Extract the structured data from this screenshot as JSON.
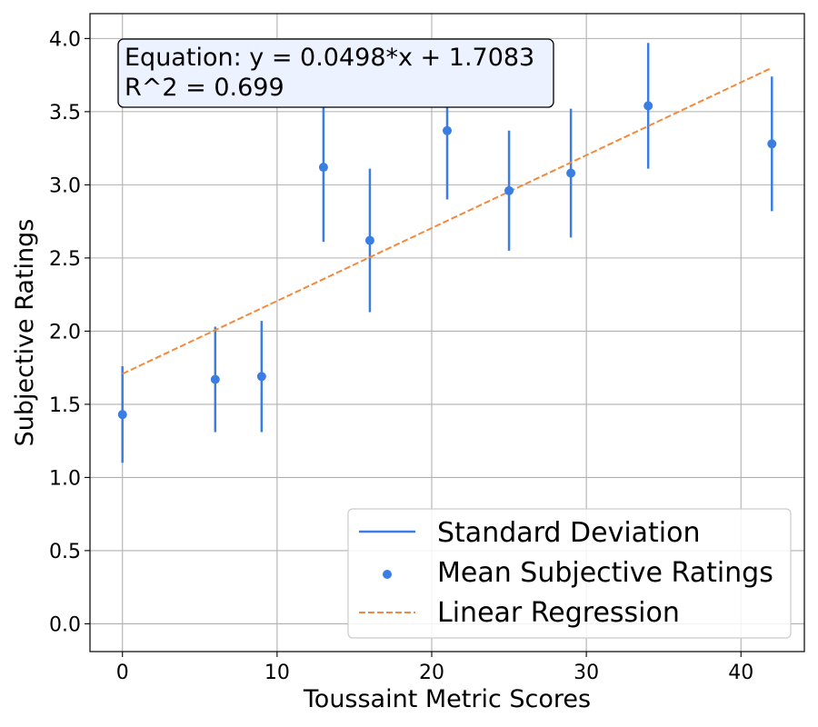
{
  "chart_data": {
    "type": "scatter",
    "title": "",
    "xlabel": "Toussaint Metric Scores",
    "ylabel": "Subjective Ratings",
    "xlim": [
      -2.1,
      44.1
    ],
    "ylim": [
      -0.19,
      4.17
    ],
    "xticks": [
      0,
      10,
      20,
      30,
      40
    ],
    "yticks": [
      0.0,
      0.5,
      1.0,
      1.5,
      2.0,
      2.5,
      3.0,
      3.5,
      4.0
    ],
    "xtick_labels": [
      "0",
      "10",
      "20",
      "30",
      "40"
    ],
    "ytick_labels": [
      "0.0",
      "0.5",
      "1.0",
      "1.5",
      "2.0",
      "2.5",
      "3.0",
      "3.5",
      "4.0"
    ],
    "grid": true,
    "legend_position": "lower-right",
    "series": [
      {
        "name": "Mean Subjective Ratings",
        "color": "#3a7ee4",
        "x": [
          0,
          6,
          9,
          13,
          16,
          21,
          25,
          29,
          34,
          42
        ],
        "y": [
          1.43,
          1.67,
          1.69,
          3.12,
          2.62,
          3.37,
          2.96,
          3.08,
          3.54,
          3.28
        ]
      },
      {
        "name": "Standard Deviation",
        "color": "#3a7ee4",
        "x": [
          0,
          6,
          9,
          13,
          16,
          21,
          25,
          29,
          34,
          42
        ],
        "err": [
          0.33,
          0.36,
          0.38,
          0.51,
          0.49,
          0.47,
          0.41,
          0.44,
          0.43,
          0.46
        ]
      },
      {
        "name": "Linear Regression",
        "color": "#f5883a",
        "slope": 0.0498,
        "intercept": 1.7083,
        "x_range": [
          0,
          42
        ]
      }
    ],
    "annotation": {
      "line1": "Equation: y = 0.0498*x + 1.7083",
      "line2": "R^2 = 0.699"
    },
    "legend": [
      {
        "label": "Standard Deviation",
        "kind": "line"
      },
      {
        "label": "Mean Subjective Ratings",
        "kind": "marker"
      },
      {
        "label": "Linear Regression",
        "kind": "dashed"
      }
    ]
  }
}
